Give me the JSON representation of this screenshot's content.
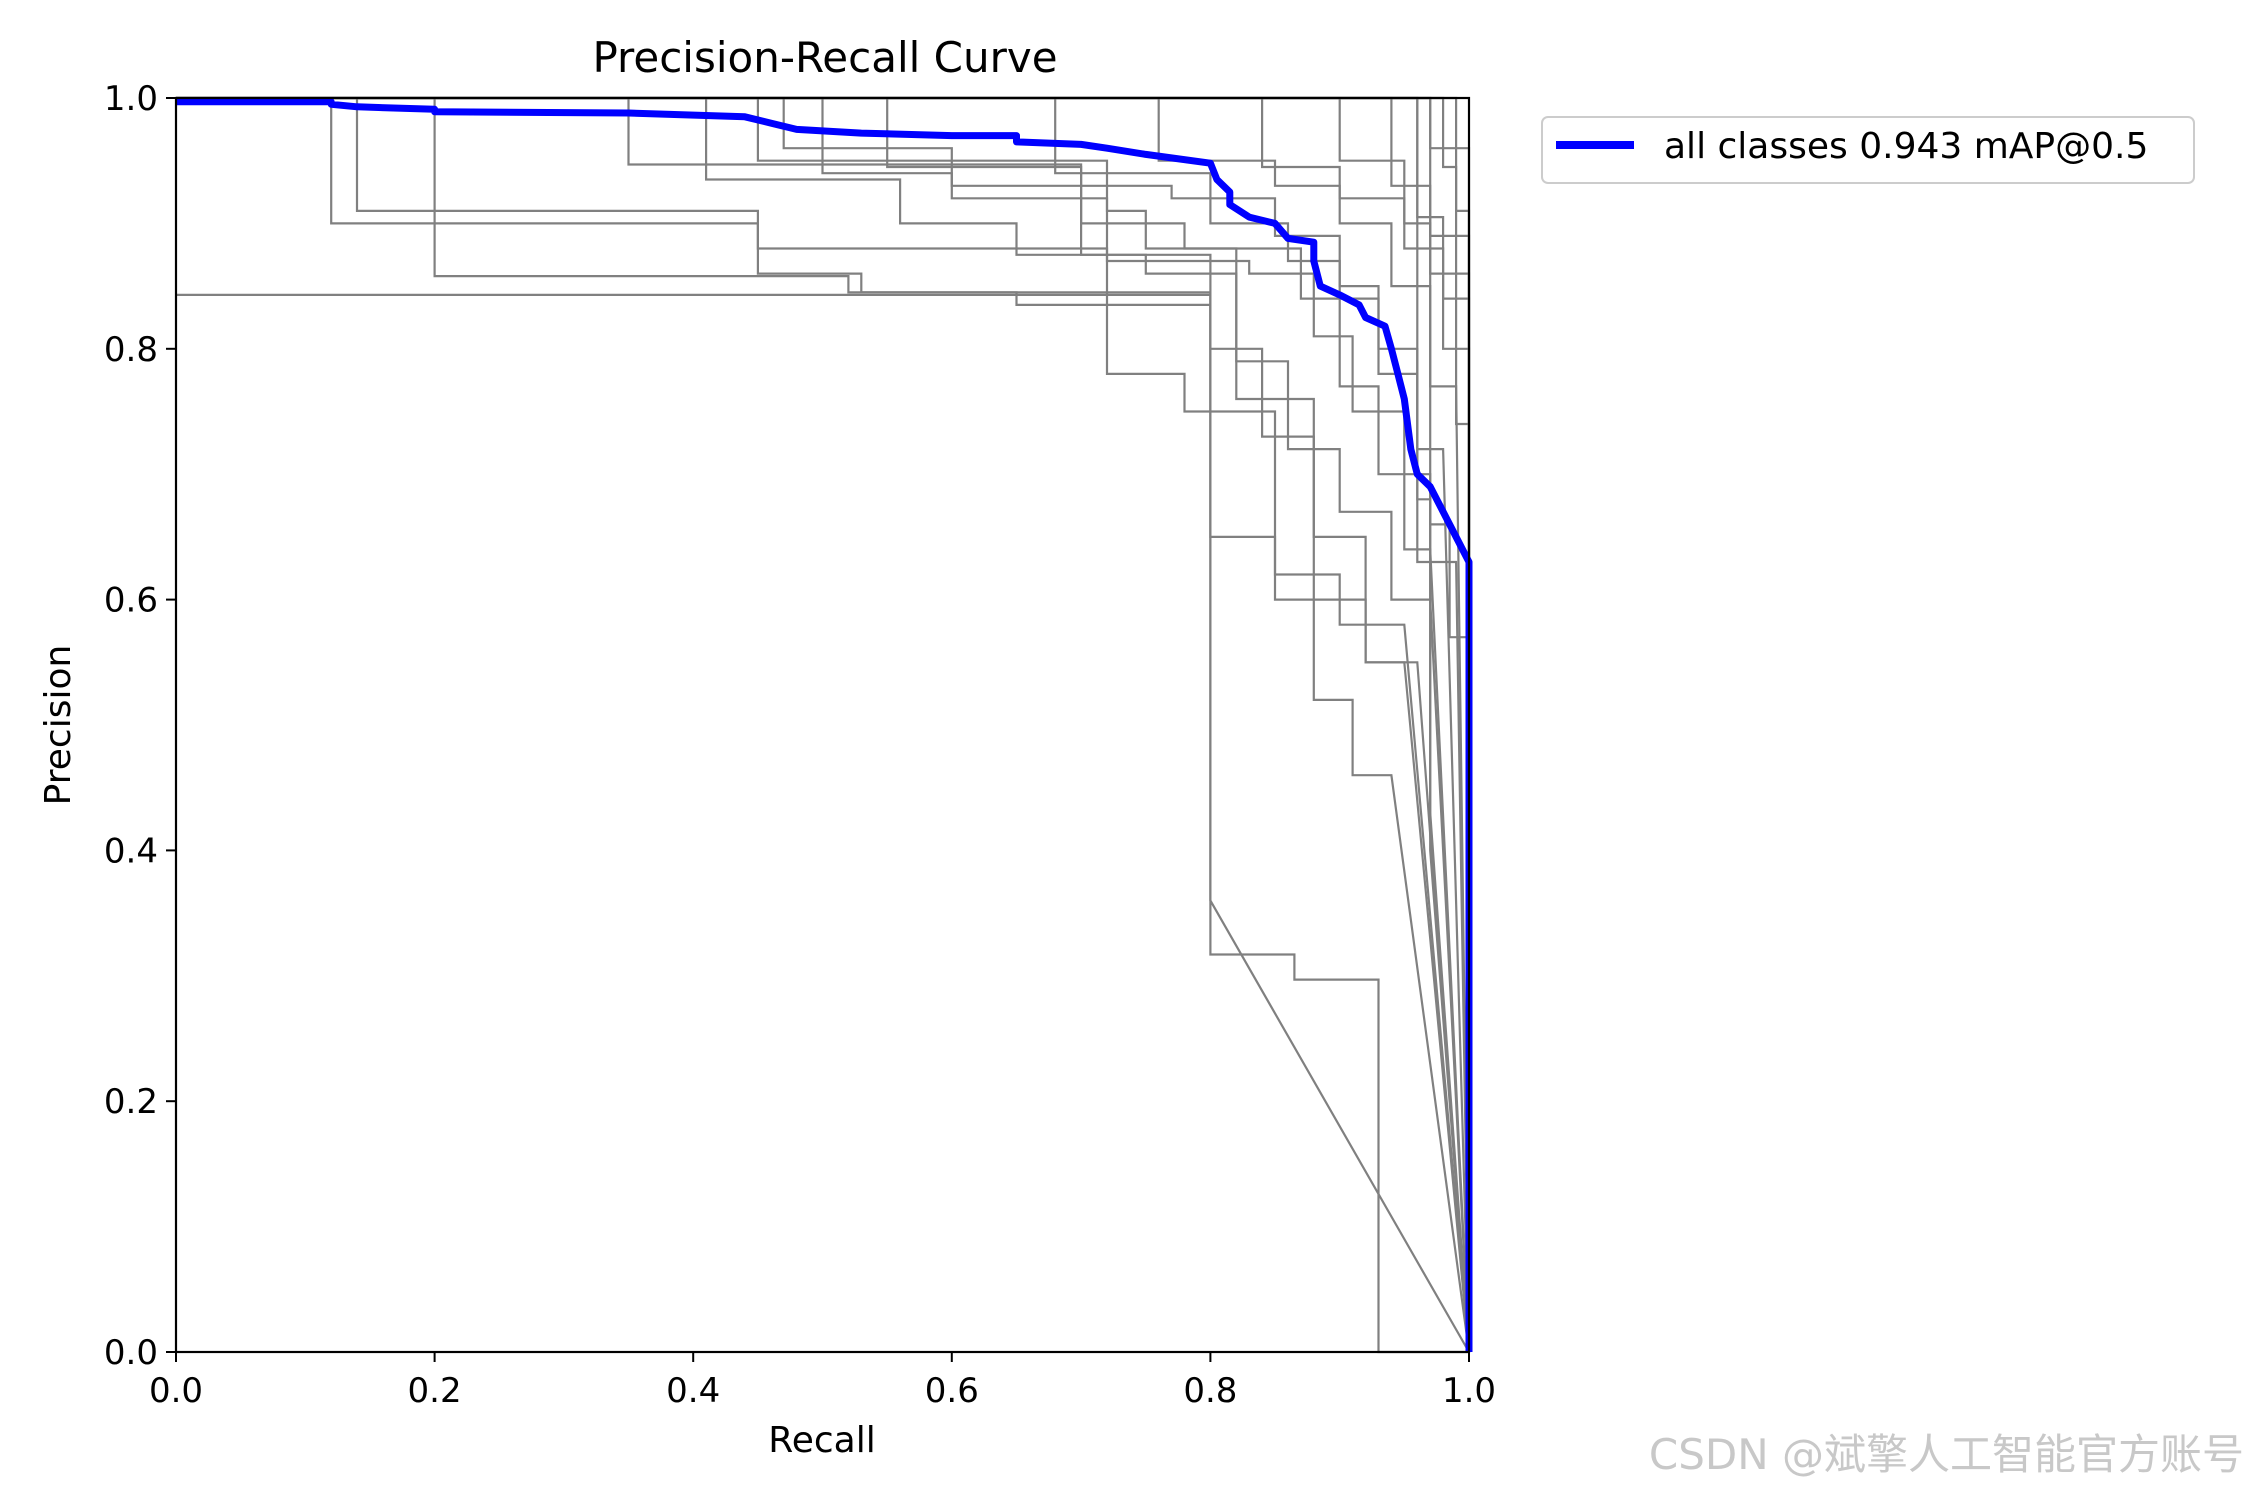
{
  "chart_data": {
    "type": "line",
    "title": "Precision-Recall Curve",
    "xlabel": "Recall",
    "ylabel": "Precision",
    "xlim": [
      0,
      1
    ],
    "ylim": [
      0,
      1
    ],
    "x_ticks": [
      "0.0",
      "0.2",
      "0.4",
      "0.6",
      "0.8",
      "1.0"
    ],
    "y_ticks": [
      "0.0",
      "0.2",
      "0.4",
      "0.6",
      "0.8",
      "1.0"
    ],
    "grid": false,
    "legend_position": "outside-right-top",
    "main_series": {
      "name": "all classes 0.943 mAP@0.5",
      "color": "#0000ff",
      "points": [
        [
          0.0,
          0.997
        ],
        [
          0.12,
          0.997
        ],
        [
          0.12,
          0.995
        ],
        [
          0.14,
          0.993
        ],
        [
          0.2,
          0.991
        ],
        [
          0.2,
          0.989
        ],
        [
          0.35,
          0.988
        ],
        [
          0.44,
          0.985
        ],
        [
          0.46,
          0.98
        ],
        [
          0.48,
          0.975
        ],
        [
          0.53,
          0.972
        ],
        [
          0.6,
          0.97
        ],
        [
          0.65,
          0.97
        ],
        [
          0.65,
          0.965
        ],
        [
          0.7,
          0.963
        ],
        [
          0.72,
          0.96
        ],
        [
          0.75,
          0.955
        ],
        [
          0.8,
          0.948
        ],
        [
          0.805,
          0.935
        ],
        [
          0.815,
          0.925
        ],
        [
          0.815,
          0.915
        ],
        [
          0.83,
          0.905
        ],
        [
          0.85,
          0.9
        ],
        [
          0.86,
          0.888
        ],
        [
          0.88,
          0.885
        ],
        [
          0.88,
          0.87
        ],
        [
          0.885,
          0.85
        ],
        [
          0.9,
          0.843
        ],
        [
          0.915,
          0.835
        ],
        [
          0.92,
          0.825
        ],
        [
          0.935,
          0.818
        ],
        [
          0.94,
          0.8
        ],
        [
          0.945,
          0.78
        ],
        [
          0.95,
          0.76
        ],
        [
          0.955,
          0.72
        ],
        [
          0.96,
          0.7
        ],
        [
          0.97,
          0.69
        ],
        [
          1.0,
          0.63
        ],
        [
          1.0,
          0.0
        ]
      ]
    },
    "class_series_color": "#808080",
    "class_series": [
      {
        "points": [
          [
            0.0,
            0.843
          ],
          [
            0.8,
            0.843
          ],
          [
            0.8,
            0.317
          ],
          [
            0.865,
            0.317
          ],
          [
            0.865,
            0.297
          ],
          [
            0.93,
            0.297
          ],
          [
            0.93,
            0.0
          ],
          [
            1.0,
            0.0
          ]
        ]
      },
      {
        "points": [
          [
            0.0,
            1.0
          ],
          [
            0.12,
            1.0
          ],
          [
            0.12,
            0.9
          ],
          [
            0.45,
            0.9
          ],
          [
            0.45,
            0.88
          ],
          [
            0.72,
            0.88
          ],
          [
            0.72,
            0.78
          ],
          [
            0.78,
            0.78
          ],
          [
            0.78,
            0.75
          ],
          [
            0.85,
            0.75
          ],
          [
            0.85,
            0.62
          ],
          [
            0.9,
            0.62
          ],
          [
            0.9,
            0.58
          ],
          [
            0.95,
            0.58
          ],
          [
            1.0,
            0.0
          ]
        ]
      },
      {
        "points": [
          [
            0.0,
            1.0
          ],
          [
            0.14,
            1.0
          ],
          [
            0.14,
            0.91
          ],
          [
            0.45,
            0.91
          ],
          [
            0.45,
            0.86
          ],
          [
            0.53,
            0.86
          ],
          [
            0.53,
            0.845
          ],
          [
            0.65,
            0.845
          ],
          [
            0.65,
            0.835
          ],
          [
            0.8,
            0.835
          ],
          [
            0.8,
            0.65
          ],
          [
            0.85,
            0.65
          ],
          [
            0.85,
            0.6
          ],
          [
            0.92,
            0.6
          ],
          [
            0.92,
            0.55
          ],
          [
            0.95,
            0.55
          ],
          [
            1.0,
            0.0
          ]
        ]
      },
      {
        "points": [
          [
            0.0,
            1.0
          ],
          [
            0.2,
            1.0
          ],
          [
            0.2,
            0.858
          ],
          [
            0.52,
            0.858
          ],
          [
            0.52,
            0.845
          ],
          [
            0.8,
            0.845
          ],
          [
            0.8,
            0.36
          ],
          [
            1.0,
            0.0
          ]
        ]
      },
      {
        "points": [
          [
            0.0,
            1.0
          ],
          [
            0.35,
            1.0
          ],
          [
            0.35,
            0.947
          ],
          [
            0.7,
            0.947
          ],
          [
            0.7,
            0.875
          ],
          [
            0.75,
            0.875
          ],
          [
            0.75,
            0.86
          ],
          [
            0.82,
            0.86
          ],
          [
            0.82,
            0.76
          ],
          [
            0.88,
            0.76
          ],
          [
            0.88,
            0.52
          ],
          [
            0.91,
            0.52
          ],
          [
            0.91,
            0.46
          ],
          [
            0.94,
            0.46
          ],
          [
            1.0,
            0.0
          ]
        ]
      },
      {
        "points": [
          [
            0.0,
            1.0
          ],
          [
            0.41,
            1.0
          ],
          [
            0.41,
            0.935
          ],
          [
            0.56,
            0.935
          ],
          [
            0.56,
            0.9
          ],
          [
            0.65,
            0.9
          ],
          [
            0.65,
            0.875
          ],
          [
            0.8,
            0.875
          ],
          [
            0.8,
            0.8
          ],
          [
            0.84,
            0.8
          ],
          [
            0.84,
            0.73
          ],
          [
            0.88,
            0.73
          ],
          [
            0.88,
            0.65
          ],
          [
            0.92,
            0.65
          ],
          [
            0.92,
            0.55
          ],
          [
            0.96,
            0.55
          ],
          [
            1.0,
            0.0
          ]
        ]
      },
      {
        "points": [
          [
            0.0,
            1.0
          ],
          [
            0.45,
            1.0
          ],
          [
            0.45,
            0.95
          ],
          [
            0.72,
            0.95
          ],
          [
            0.72,
            0.91
          ],
          [
            0.75,
            0.91
          ],
          [
            0.75,
            0.88
          ],
          [
            0.82,
            0.88
          ],
          [
            0.82,
            0.79
          ],
          [
            0.86,
            0.79
          ],
          [
            0.86,
            0.72
          ],
          [
            0.9,
            0.72
          ],
          [
            0.9,
            0.67
          ],
          [
            0.94,
            0.67
          ],
          [
            0.94,
            0.6
          ],
          [
            0.97,
            0.6
          ],
          [
            1.0,
            0.0
          ]
        ]
      },
      {
        "points": [
          [
            0.0,
            1.0
          ],
          [
            0.47,
            1.0
          ],
          [
            0.47,
            0.96
          ],
          [
            0.6,
            0.96
          ],
          [
            0.6,
            0.93
          ],
          [
            0.7,
            0.93
          ],
          [
            0.7,
            0.9
          ],
          [
            0.78,
            0.9
          ],
          [
            0.78,
            0.88
          ],
          [
            0.87,
            0.88
          ],
          [
            0.87,
            0.84
          ],
          [
            0.9,
            0.84
          ],
          [
            0.9,
            0.77
          ],
          [
            0.93,
            0.77
          ],
          [
            0.93,
            0.7
          ],
          [
            0.97,
            0.7
          ],
          [
            0.97,
            0.4
          ],
          [
            1.0,
            0.0
          ]
        ]
      },
      {
        "points": [
          [
            0.0,
            1.0
          ],
          [
            0.5,
            1.0
          ],
          [
            0.5,
            0.94
          ],
          [
            0.6,
            0.94
          ],
          [
            0.6,
            0.92
          ],
          [
            0.72,
            0.92
          ],
          [
            0.72,
            0.87
          ],
          [
            0.83,
            0.87
          ],
          [
            0.83,
            0.86
          ],
          [
            0.88,
            0.86
          ],
          [
            0.88,
            0.81
          ],
          [
            0.91,
            0.81
          ],
          [
            0.91,
            0.75
          ],
          [
            0.95,
            0.75
          ],
          [
            0.95,
            0.64
          ],
          [
            0.97,
            0.64
          ],
          [
            1.0,
            0.0
          ]
        ]
      },
      {
        "points": [
          [
            0.0,
            1.0
          ],
          [
            0.55,
            1.0
          ],
          [
            0.55,
            0.945
          ],
          [
            0.7,
            0.945
          ],
          [
            0.7,
            0.93
          ],
          [
            0.77,
            0.93
          ],
          [
            0.77,
            0.92
          ],
          [
            0.85,
            0.92
          ],
          [
            0.85,
            0.89
          ],
          [
            0.9,
            0.89
          ],
          [
            0.9,
            0.85
          ],
          [
            0.93,
            0.85
          ],
          [
            0.93,
            0.8
          ],
          [
            0.96,
            0.8
          ],
          [
            0.96,
            0.72
          ],
          [
            0.98,
            0.72
          ],
          [
            1.0,
            0.0
          ]
        ]
      },
      {
        "points": [
          [
            0.0,
            1.0
          ],
          [
            0.68,
            1.0
          ],
          [
            0.68,
            0.94
          ],
          [
            0.8,
            0.94
          ],
          [
            0.8,
            0.9
          ],
          [
            0.86,
            0.9
          ],
          [
            0.86,
            0.87
          ],
          [
            0.9,
            0.87
          ],
          [
            0.9,
            0.84
          ],
          [
            0.93,
            0.84
          ],
          [
            0.93,
            0.78
          ],
          [
            0.96,
            0.78
          ],
          [
            0.96,
            0.63
          ],
          [
            0.99,
            0.63
          ],
          [
            1.0,
            0.0
          ]
        ]
      },
      {
        "points": [
          [
            0.0,
            1.0
          ],
          [
            0.76,
            1.0
          ],
          [
            0.76,
            0.95
          ],
          [
            0.85,
            0.95
          ],
          [
            0.85,
            0.93
          ],
          [
            0.9,
            0.93
          ],
          [
            0.9,
            0.9
          ],
          [
            0.94,
            0.9
          ],
          [
            0.94,
            0.85
          ],
          [
            0.97,
            0.85
          ],
          [
            0.97,
            0.77
          ],
          [
            0.99,
            0.77
          ],
          [
            1.0,
            0.0
          ]
        ]
      },
      {
        "points": [
          [
            0.0,
            1.0
          ],
          [
            0.84,
            1.0
          ],
          [
            0.84,
            0.945
          ],
          [
            0.9,
            0.945
          ],
          [
            0.9,
            0.92
          ],
          [
            0.95,
            0.92
          ],
          [
            0.95,
            0.88
          ],
          [
            0.98,
            0.88
          ],
          [
            0.98,
            0.8
          ],
          [
            1.0,
            0.8
          ],
          [
            1.0,
            0.0
          ]
        ]
      },
      {
        "points": [
          [
            0.0,
            1.0
          ],
          [
            0.9,
            1.0
          ],
          [
            0.9,
            0.95
          ],
          [
            0.95,
            0.95
          ],
          [
            0.95,
            0.9
          ],
          [
            0.97,
            0.9
          ],
          [
            0.97,
            0.86
          ],
          [
            1.0,
            0.86
          ],
          [
            1.0,
            0.0
          ]
        ]
      },
      {
        "points": [
          [
            0.0,
            1.0
          ],
          [
            0.94,
            1.0
          ],
          [
            0.94,
            0.93
          ],
          [
            0.97,
            0.93
          ],
          [
            0.97,
            0.89
          ],
          [
            1.0,
            0.89
          ],
          [
            1.0,
            0.0
          ]
        ]
      },
      {
        "points": [
          [
            0.0,
            1.0
          ],
          [
            0.97,
            1.0
          ],
          [
            0.97,
            0.96
          ],
          [
            1.0,
            0.96
          ],
          [
            1.0,
            0.0
          ]
        ]
      },
      {
        "points": [
          [
            0.0,
            1.0
          ],
          [
            0.98,
            1.0
          ],
          [
            0.98,
            0.945
          ],
          [
            0.99,
            0.945
          ],
          [
            0.99,
            0.91
          ],
          [
            1.0,
            0.91
          ],
          [
            1.0,
            0.0
          ]
        ]
      },
      {
        "points": [
          [
            0.0,
            1.0
          ],
          [
            0.96,
            1.0
          ],
          [
            0.96,
            0.905
          ],
          [
            0.98,
            0.905
          ],
          [
            0.98,
            0.84
          ],
          [
            1.0,
            0.84
          ],
          [
            1.0,
            0.0
          ]
        ]
      },
      {
        "points": [
          [
            0.0,
            1.0
          ],
          [
            0.99,
            1.0
          ],
          [
            0.99,
            0.74
          ],
          [
            1.0,
            0.74
          ],
          [
            1.0,
            0.0
          ]
        ]
      },
      {
        "points": [
          [
            0.0,
            1.0
          ],
          [
            0.97,
            1.0
          ],
          [
            0.97,
            0.66
          ],
          [
            0.985,
            0.66
          ],
          [
            0.985,
            0.57
          ],
          [
            1.0,
            0.57
          ],
          [
            1.0,
            0.0
          ]
        ]
      },
      {
        "points": [
          [
            0.0,
            1.0
          ],
          [
            0.96,
            1.0
          ],
          [
            0.96,
            0.68
          ],
          [
            0.97,
            0.68
          ],
          [
            0.97,
            0.43
          ],
          [
            1.0,
            0.0
          ]
        ]
      }
    ],
    "watermark": "CSDN @斌擎人工智能官方账号"
  }
}
